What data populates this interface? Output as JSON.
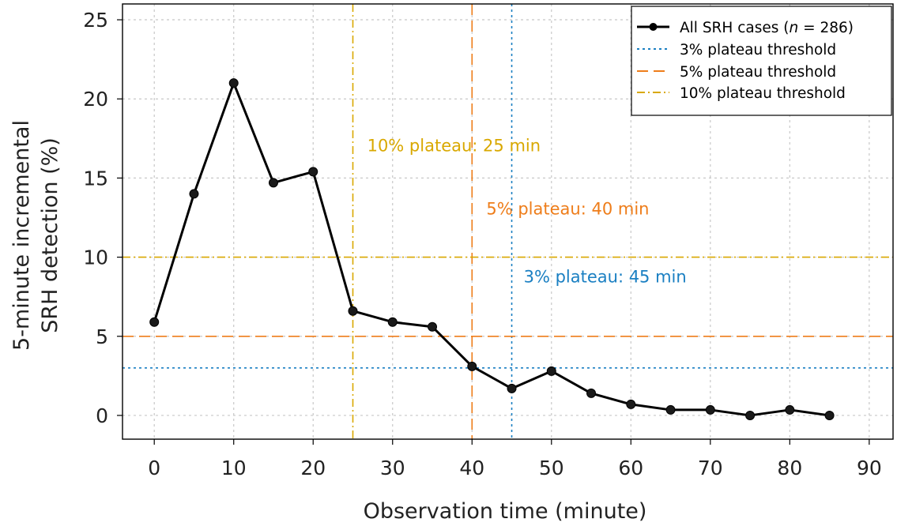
{
  "chart_data": {
    "type": "line",
    "title": "",
    "xlabel": "Observation time (minute)",
    "ylabel_lines": [
      "5-minute incremental",
      "SRH detection (%)"
    ],
    "xlim": [
      -4,
      93
    ],
    "ylim": [
      -1.5,
      26
    ],
    "x_ticks": [
      0,
      10,
      20,
      30,
      40,
      50,
      60,
      70,
      80,
      90
    ],
    "x_tick_labels": [
      "0",
      "10",
      "20",
      "30",
      "40",
      "50",
      "60",
      "70",
      "80",
      "90"
    ],
    "y_ticks": [
      0,
      5,
      10,
      15,
      20,
      25
    ],
    "y_tick_labels": [
      "0",
      "5",
      "10",
      "15",
      "20",
      "25"
    ],
    "grid": true,
    "series": [
      {
        "name": "All SRH cases (n = 286)",
        "legend_prefix": "All SRH cases (",
        "legend_n": "n",
        "legend_suffix": " = 286)",
        "color": "#000000",
        "x": [
          0,
          5,
          10,
          15,
          20,
          25,
          30,
          35,
          40,
          45,
          50,
          55,
          60,
          65,
          70,
          75,
          80,
          85
        ],
        "y": [
          5.9,
          14.0,
          21.0,
          14.7,
          15.4,
          6.6,
          5.9,
          5.6,
          3.1,
          1.7,
          2.8,
          1.4,
          0.7,
          0.35,
          0.35,
          0.0,
          0.35,
          0.0
        ]
      }
    ],
    "thresholds": [
      {
        "name": "3% plateau threshold",
        "y": 3,
        "x": 45,
        "color": "#1a7fc2",
        "dash": "dotted",
        "annotation": "3% plateau: 45 min",
        "anno_x": 46.5,
        "anno_y": 8.4
      },
      {
        "name": "5% plateau threshold",
        "y": 5,
        "x": 40,
        "color": "#ee7d1a",
        "dash": "dashed",
        "annotation": "5% plateau: 40 min",
        "anno_x": 41.8,
        "anno_y": 12.7
      },
      {
        "name": "10% plateau threshold",
        "y": 10,
        "x": 25,
        "color": "#d9a800",
        "dash": "dashdot",
        "annotation": "10% plateau: 25 min",
        "anno_x": 26.8,
        "anno_y": 16.7
      }
    ],
    "legend_position": "top-right"
  }
}
